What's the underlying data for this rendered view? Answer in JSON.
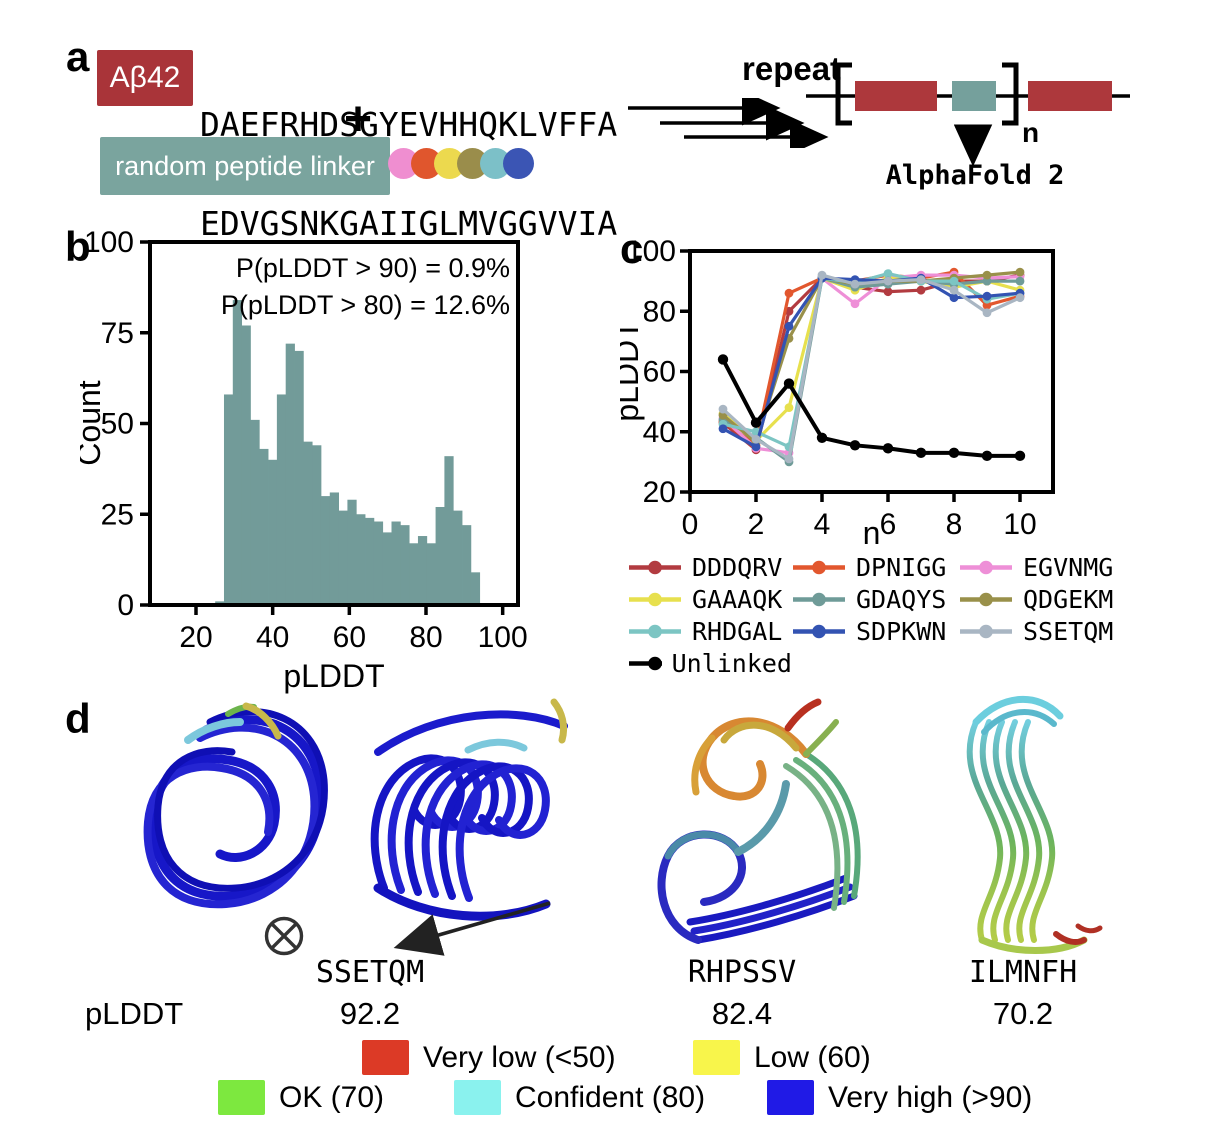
{
  "panels": {
    "a_label": "a",
    "b_label": "b",
    "c_label": "c",
    "d_label": "d"
  },
  "panel_a": {
    "ab42_label": "Aβ42",
    "ab42_color": "#a93439",
    "sequence_line1": "DAEFRHDSGYEVHHQKLVFFA",
    "sequence_line2": "EDVGSNKGAIIGLMVGGVVIA",
    "plus_sign": "+",
    "linker_label": "random peptide linker",
    "linker_color": "#7aa49e",
    "linker_dot_colors": [
      "#ef8ed0",
      "#e0562d",
      "#ecd94e",
      "#9a8d4b",
      "#7cc0c8",
      "#3b55b4"
    ],
    "repeat_label": "repeat",
    "construct": {
      "box_red": "#ad383c",
      "box_teal": "#75a09c",
      "n_subscript": "n"
    },
    "alphafold_label": "AlphaFold 2"
  },
  "chart_data": [
    {
      "type": "bar",
      "title": "",
      "xlabel": "pLDDT",
      "ylabel": "Count",
      "xlim": [
        8,
        104
      ],
      "ylim": [
        0,
        100
      ],
      "xticks": [
        20,
        40,
        60,
        80,
        100
      ],
      "yticks": [
        0,
        25,
        50,
        75,
        100
      ],
      "bin_start": 25,
      "bin_width": 2.3,
      "values": [
        1,
        58,
        84,
        77,
        51,
        43,
        40,
        58,
        72,
        70,
        45,
        44,
        30,
        31,
        26,
        29,
        25,
        24,
        23,
        20,
        23,
        22,
        17,
        19,
        17,
        27,
        41,
        26,
        22,
        9
      ],
      "bar_color": "#729b99",
      "annotations": [
        "P(pLDDT > 90) = 0.9%",
        "P(pLDDT > 80) = 12.6%"
      ]
    },
    {
      "type": "line",
      "title": "",
      "xlabel": "n",
      "ylabel": "pLDDT",
      "xlim": [
        0,
        11
      ],
      "ylim": [
        20,
        100
      ],
      "xticks": [
        0,
        2,
        4,
        6,
        8,
        10
      ],
      "yticks": [
        20,
        40,
        60,
        80,
        100
      ],
      "x": [
        1,
        2,
        3,
        4,
        5,
        6,
        7,
        8,
        9,
        10
      ],
      "series": [
        {
          "name": "DDDQRV",
          "color": "#b23b40",
          "values": [
            43,
            34,
            80,
            91,
            88,
            86.5,
            87,
            90,
            90,
            92
          ]
        },
        {
          "name": "DPNIGG",
          "color": "#e2572e",
          "values": [
            43.5,
            35.5,
            86,
            91,
            90,
            92,
            91,
            93,
            82,
            85
          ]
        },
        {
          "name": "EGVNMG",
          "color": "#ee8fd7",
          "values": [
            44.5,
            34.5,
            33,
            91,
            82.5,
            91,
            92,
            92,
            91,
            91.5
          ]
        },
        {
          "name": "GAAAQK",
          "color": "#e7e04e",
          "values": [
            46,
            37,
            48,
            91,
            87,
            91,
            90,
            88,
            90,
            87
          ]
        },
        {
          "name": "GDAQYS",
          "color": "#6f9b98",
          "values": [
            44,
            38,
            30,
            91,
            88,
            89,
            90,
            89,
            90,
            90
          ]
        },
        {
          "name": "QDGEKM",
          "color": "#99904a",
          "values": [
            45.5,
            36.5,
            71,
            91,
            89,
            90,
            90,
            91,
            92,
            93
          ]
        },
        {
          "name": "RHDGAL",
          "color": "#7cc5c3",
          "values": [
            42.5,
            40,
            35,
            91,
            89.5,
            92.5,
            90,
            90,
            84,
            86
          ]
        },
        {
          "name": "SDPKWN",
          "color": "#3353b2",
          "values": [
            41,
            35,
            75,
            91,
            90.5,
            90,
            91,
            84.5,
            85,
            86
          ]
        },
        {
          "name": "SSETQM",
          "color": "#a9b6c3",
          "values": [
            47.5,
            37.5,
            31,
            92,
            89,
            90,
            90.5,
            87,
            79.5,
            84.5
          ]
        },
        {
          "name": "Unlinked",
          "color": "#000000",
          "values": [
            64,
            43,
            56,
            38,
            35.5,
            34.5,
            33,
            33,
            32,
            32
          ]
        }
      ],
      "legend_position": "below"
    }
  ],
  "panel_d": {
    "structures": [
      {
        "name": "SSETQM",
        "plddt": "92.2"
      },
      {
        "name": "RHPSSV",
        "plddt": "82.4"
      },
      {
        "name": "ILMNFH",
        "plddt": "70.2"
      }
    ],
    "row_label": "pLDDT",
    "otimes_symbol": "⊗",
    "legend": [
      {
        "label": "Very low (<50)",
        "color": "#dc3a26"
      },
      {
        "label": "Low (60)",
        "color": "#f8f54b"
      },
      {
        "label": "OK (70)",
        "color": "#7de83f"
      },
      {
        "label": "Confident (80)",
        "color": "#8af2ee"
      },
      {
        "label": "Very high (>90)",
        "color": "#201ae6"
      }
    ]
  }
}
